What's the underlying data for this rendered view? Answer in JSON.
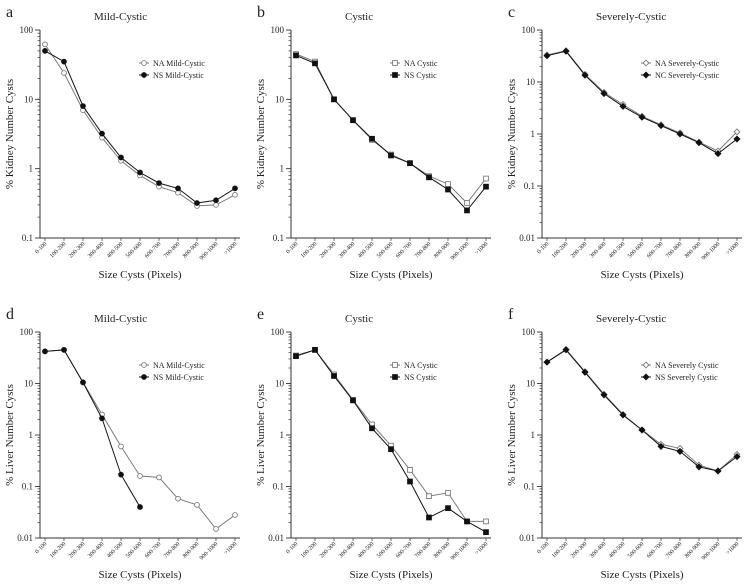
{
  "figure": {
    "colors": {
      "axis": "#333333",
      "series_a": "#7a7a7a",
      "series_b": "#111111",
      "background": "#ffffff"
    }
  },
  "chart_data": [
    {
      "panel": "a",
      "type": "line",
      "title": "Mild-Cystic",
      "xlabel": "Size Cysts (Pixels)",
      "ylabel": "% Kidney Number Cysts",
      "yscale": "log",
      "ylim": [
        0.1,
        100
      ],
      "yticks": [
        "0.1",
        "1",
        "10",
        "100"
      ],
      "categories": [
        "0-100",
        "100-200",
        "200-300",
        "300-400",
        "400-500",
        "500-600",
        "600-700",
        "700-800",
        "800-900",
        "900-1000",
        ">1000"
      ],
      "legend_position": "right",
      "series": [
        {
          "name": "NA Mild-Cystic",
          "marker": "circle-open",
          "values": [
            62,
            24,
            7,
            2.8,
            1.3,
            0.8,
            0.55,
            0.45,
            0.29,
            0.3,
            0.42
          ]
        },
        {
          "name": "NS Mild-Cystic",
          "marker": "circle-filled",
          "values": [
            50,
            35,
            8,
            3.2,
            1.45,
            0.88,
            0.62,
            0.52,
            0.32,
            0.35,
            0.52
          ]
        }
      ]
    },
    {
      "panel": "b",
      "type": "line",
      "title": "Cystic",
      "xlabel": "Size Cysts (Pixels)",
      "ylabel": "% Kidney Number Cysts",
      "yscale": "log",
      "ylim": [
        0.1,
        100
      ],
      "yticks": [
        "0.1",
        "1",
        "10",
        "100"
      ],
      "categories": [
        "0-100",
        "100-200",
        "200-300",
        "300-400",
        "400-500",
        "500-600",
        "600-700",
        "700-800",
        "800-900",
        "900-1000",
        ">1000"
      ],
      "legend_position": "right",
      "series": [
        {
          "name": "NA Cystic",
          "marker": "square-open",
          "values": [
            45,
            35,
            10,
            5,
            2.6,
            1.6,
            1.2,
            0.78,
            0.6,
            0.32,
            0.72
          ]
        },
        {
          "name": "NS Cystic",
          "marker": "square-filled",
          "values": [
            43,
            33,
            10,
            5,
            2.7,
            1.55,
            1.2,
            0.75,
            0.5,
            0.25,
            0.55
          ]
        }
      ]
    },
    {
      "panel": "c",
      "type": "line",
      "title": "Severely-Cystic",
      "xlabel": "Size Cysts (Pixels)",
      "ylabel": "% Kidney Number Cysts",
      "yscale": "log",
      "ylim": [
        0.01,
        100
      ],
      "yticks": [
        "0.01",
        "0.1",
        "1",
        "10",
        "100"
      ],
      "categories": [
        "0-100",
        "100-200",
        "200-300",
        "300-400",
        "400-500",
        "500-600",
        "600-700",
        "700-800",
        "800-900",
        "900-1000",
        ">1000"
      ],
      "legend_position": "right",
      "series": [
        {
          "name": "NA Severely-Cystic",
          "marker": "diamond-open",
          "values": [
            33,
            40,
            14,
            6.3,
            3.7,
            2.2,
            1.5,
            1.05,
            0.7,
            0.47,
            1.1
          ]
        },
        {
          "name": "NC Severely-Cystic",
          "marker": "diamond-filled",
          "values": [
            32,
            39,
            13.5,
            6,
            3.4,
            2.1,
            1.45,
            1.0,
            0.68,
            0.42,
            0.8
          ]
        }
      ]
    },
    {
      "panel": "d",
      "type": "line",
      "title": "Mild-Cystic",
      "xlabel": "Size Cysts (Pixels)",
      "ylabel": "% Liver Number Cysts",
      "yscale": "log",
      "ylim": [
        0.01,
        100
      ],
      "yticks": [
        "0.01",
        "0.1",
        "1",
        "10",
        "100"
      ],
      "categories": [
        "0-100",
        "100-200",
        "200-300",
        "300-400",
        "400-500",
        "500-600",
        "600-700",
        "700-800",
        "800-900",
        "900-1000",
        ">1000"
      ],
      "legend_position": "right",
      "series": [
        {
          "name": "NA Mild-Cystic",
          "marker": "circle-open",
          "values": [
            42,
            45,
            10.5,
            2.5,
            0.6,
            0.16,
            0.15,
            0.058,
            0.044,
            0.015,
            0.028
          ]
        },
        {
          "name": "NS Mild-Cystic",
          "marker": "circle-filled",
          "values": [
            42,
            45,
            10.5,
            2.1,
            0.17,
            0.04,
            null,
            null,
            null,
            null,
            null
          ]
        }
      ]
    },
    {
      "panel": "e",
      "type": "line",
      "title": "Cystic",
      "xlabel": "Size Cysts (Pixels)",
      "ylabel": "% Liver Number Cysts",
      "yscale": "log",
      "ylim": [
        0.01,
        100
      ],
      "yticks": [
        "0.01",
        "0.1",
        "1",
        "10",
        "100"
      ],
      "categories": [
        "0-100",
        "100-200",
        "200-300",
        "300-400",
        "400-500",
        "500-600",
        "600-700",
        "700-800",
        "800-900",
        "900-1000",
        ">1000"
      ],
      "legend_position": "right",
      "series": [
        {
          "name": "NA Cystic",
          "marker": "square-open",
          "values": [
            35,
            45,
            15,
            4.8,
            1.6,
            0.62,
            0.21,
            0.065,
            0.075,
            0.021,
            0.021
          ]
        },
        {
          "name": "NS Cystic",
          "marker": "square-filled",
          "values": [
            34,
            45,
            14,
            4.7,
            1.35,
            0.53,
            0.125,
            0.025,
            0.038,
            0.021,
            0.013
          ]
        }
      ]
    },
    {
      "panel": "f",
      "type": "line",
      "title": "Severely-Cystic",
      "xlabel": "Size Cysts (Pixels)",
      "ylabel": "% Liver Number Cysts",
      "yscale": "log",
      "ylim": [
        0.01,
        100
      ],
      "yticks": [
        "0.01",
        "0.1",
        "1",
        "10",
        "100"
      ],
      "categories": [
        "0-100",
        "100-200",
        "200-300",
        "300-400",
        "400-500",
        "500-600",
        "600-700",
        "700-800",
        "800-900",
        "900-1000",
        ">1000"
      ],
      "legend_position": "right",
      "series": [
        {
          "name": "NA Severely Cystic",
          "marker": "diamond-open",
          "values": [
            26,
            46,
            17,
            6.2,
            2.5,
            1.25,
            0.66,
            0.55,
            0.26,
            0.2,
            0.42
          ]
        },
        {
          "name": "NS Severely Cystic",
          "marker": "diamond-filled",
          "values": [
            26,
            45,
            16.5,
            6,
            2.45,
            1.25,
            0.6,
            0.48,
            0.24,
            0.2,
            0.38
          ]
        }
      ]
    }
  ]
}
